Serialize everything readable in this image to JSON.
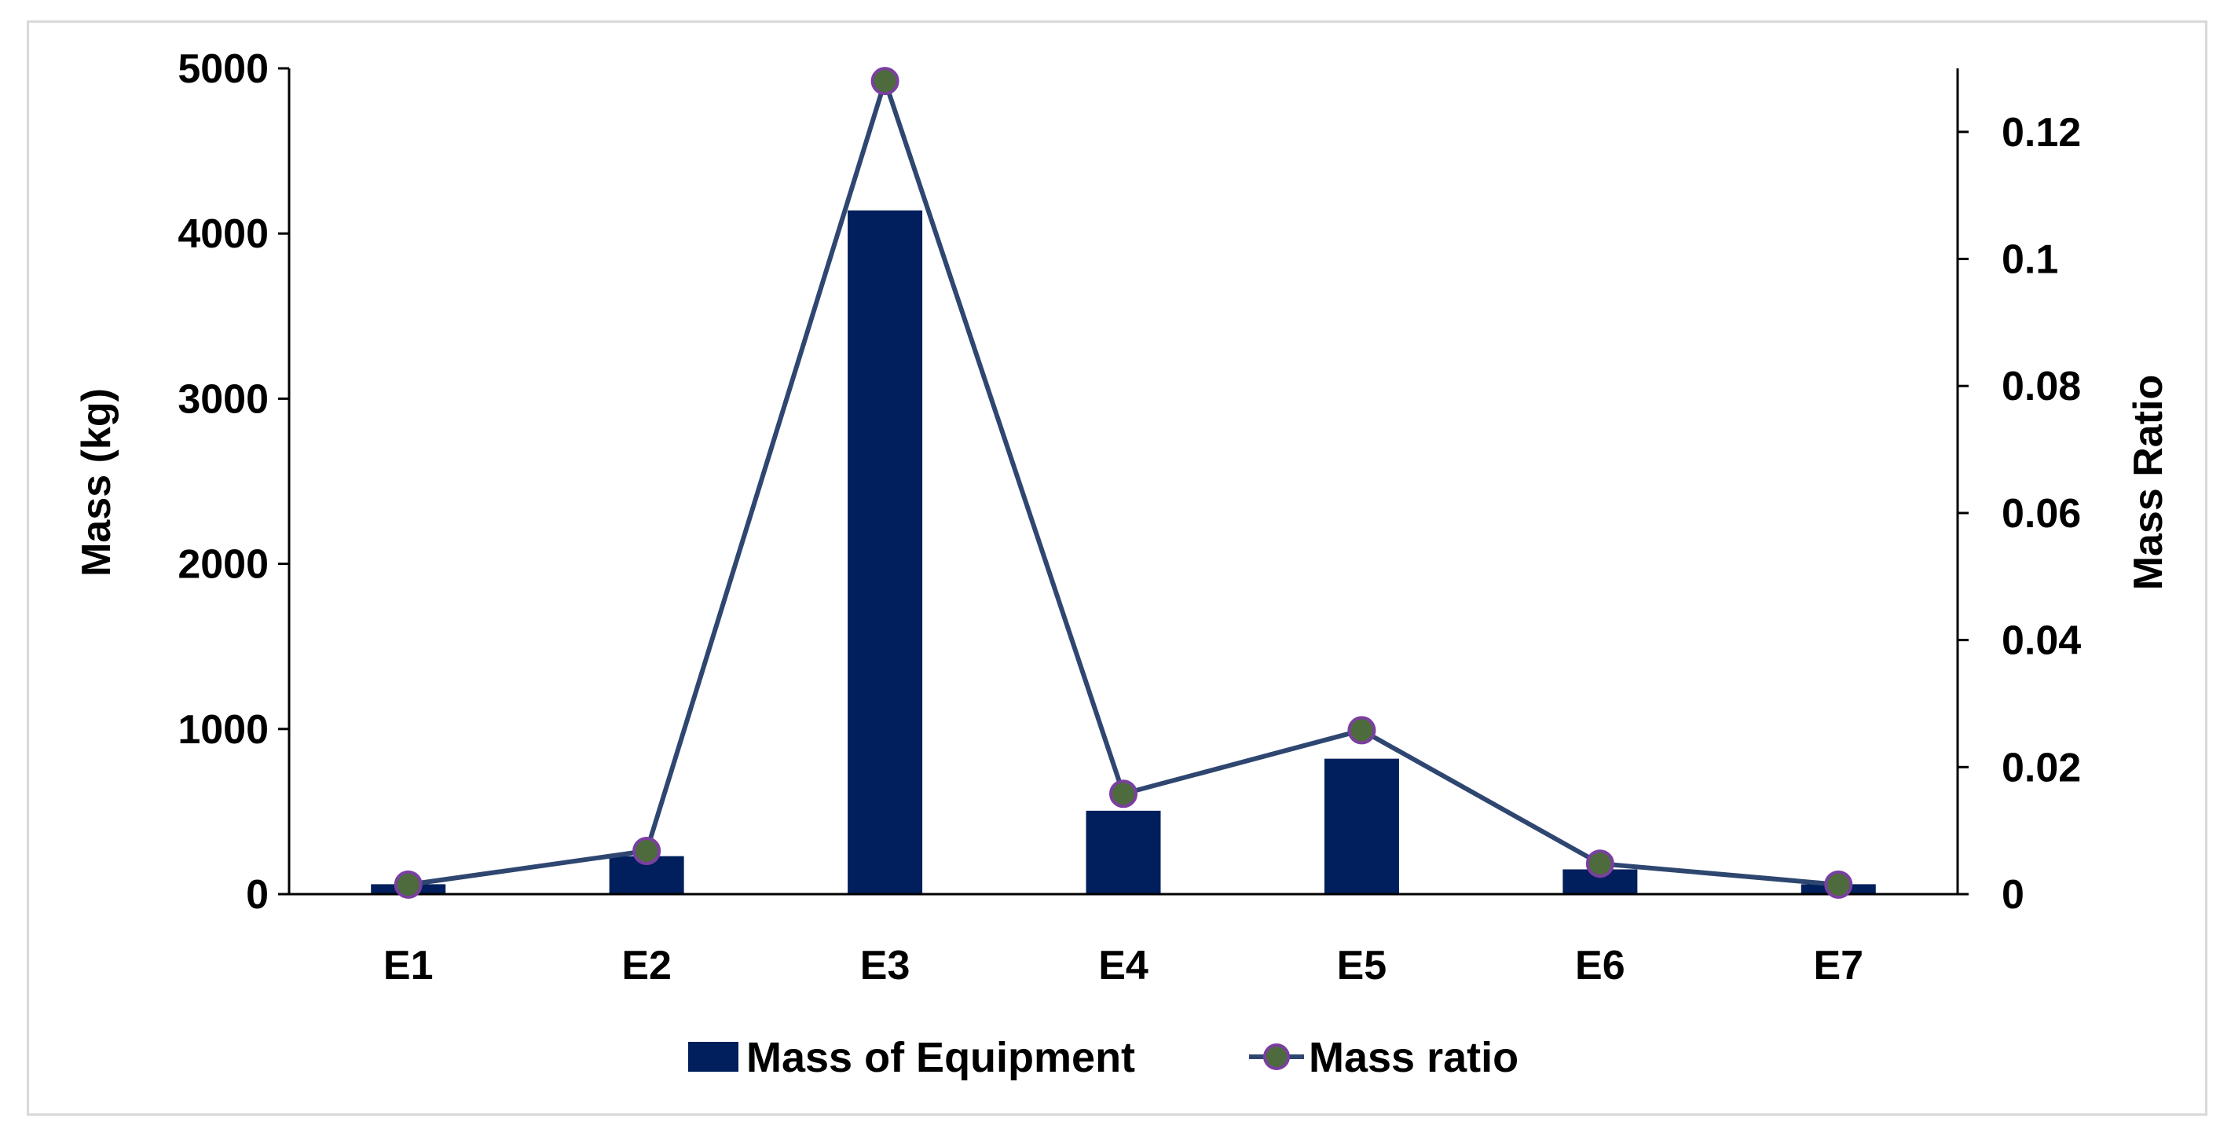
{
  "chart_data": {
    "type": "bar",
    "categories": [
      "E1",
      "E2",
      "E3",
      "E4",
      "E5",
      "E6",
      "E7"
    ],
    "series": [
      {
        "name": "Mass of Equipment",
        "type": "bar",
        "axis": "left",
        "values": [
          60,
          230,
          4140,
          505,
          820,
          150,
          60
        ],
        "color": "#001f5c"
      },
      {
        "name": "Mass ratio",
        "type": "line",
        "axis": "right",
        "values": [
          0.0015,
          0.0068,
          0.128,
          0.0158,
          0.0258,
          0.0048,
          0.0015
        ],
        "color": "#2e4670",
        "marker_color": "#4d6b3d",
        "marker_edge": "#7a3fa0"
      }
    ],
    "title": "",
    "xlabel": "",
    "ylabel": "Mass (kg)",
    "y2label": "Mass Ratio",
    "ylim": [
      0,
      5000
    ],
    "y2lim": [
      0,
      0.13
    ],
    "yticks": [
      "0",
      "1000",
      "2000",
      "3000",
      "4000",
      "5000"
    ],
    "y2ticks": [
      "0",
      "0.02",
      "0.04",
      "0.06",
      "0.08",
      "0.1",
      "0.12"
    ],
    "grid": false,
    "legend_placement": "bottom-center"
  }
}
